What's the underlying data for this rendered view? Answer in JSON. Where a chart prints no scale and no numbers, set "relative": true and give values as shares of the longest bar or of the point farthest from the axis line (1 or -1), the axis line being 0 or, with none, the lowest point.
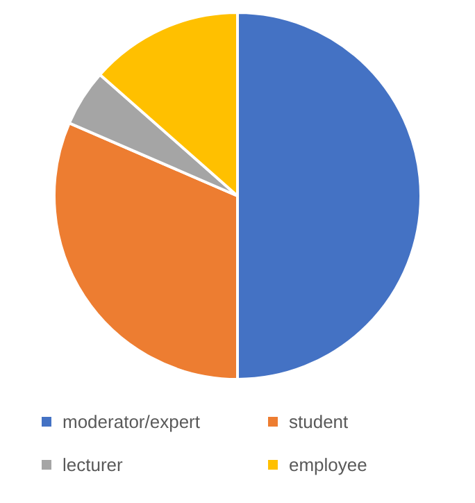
{
  "chart_data": {
    "type": "pie",
    "relative": true,
    "categories": [
      "moderator/expert",
      "student",
      "lecturer",
      "employee"
    ],
    "values": [
      50,
      31.5,
      5,
      13.5
    ],
    "colors": [
      "#4472c4",
      "#ed7d31",
      "#a5a5a5",
      "#ffc000"
    ],
    "legend": "bottom"
  }
}
